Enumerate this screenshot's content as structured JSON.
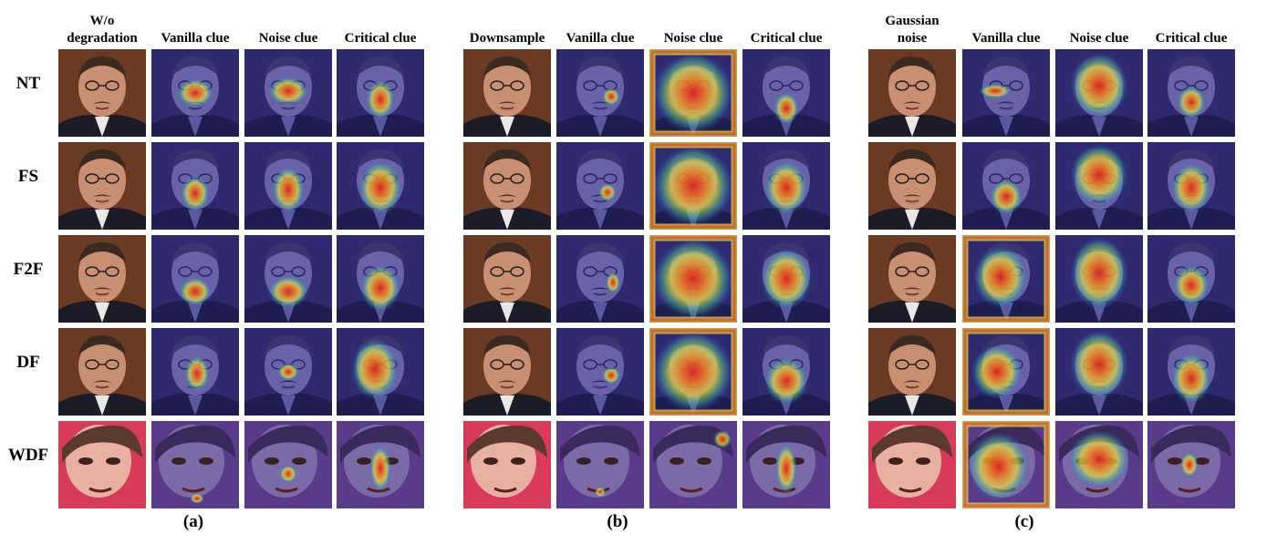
{
  "panels": [
    {
      "label": "(a)",
      "columns": [
        "W/o degradation",
        "Vanilla clue",
        "Noise clue",
        "Critical clue"
      ],
      "column_lines": [
        [
          "W/o",
          "degradation"
        ],
        [
          "Vanilla clue"
        ],
        [
          "Noise clue"
        ],
        [
          "Critical clue"
        ]
      ]
    },
    {
      "label": "(b)",
      "columns": [
        "Downsample",
        "Vanilla clue",
        "Noise clue",
        "Critical clue"
      ],
      "column_lines": [
        [
          "Downsample"
        ],
        [
          "Vanilla clue"
        ],
        [
          "Noise clue"
        ],
        [
          "Critical clue"
        ]
      ]
    },
    {
      "label": "(c)",
      "columns": [
        "Gaussian noise",
        "Vanilla clue",
        "Noise clue",
        "Critical clue"
      ],
      "column_lines": [
        [
          "Gaussian",
          "noise"
        ],
        [
          "Vanilla clue"
        ],
        [
          "Noise clue"
        ],
        [
          "Critical clue"
        ]
      ]
    }
  ],
  "rows": [
    "NT",
    "FS",
    "F2F",
    "DF",
    "WDF"
  ],
  "colors": {
    "heat_background": "#2a2a7a",
    "heat_low": "#3a55d0",
    "heat_mid": "#e8e040",
    "heat_high": "#e02020",
    "photo_bg_face": "#6a3a22",
    "photo_bg_wdf": "#d83a5a",
    "skin": "#c89070",
    "suit": "#1c1c28"
  }
}
